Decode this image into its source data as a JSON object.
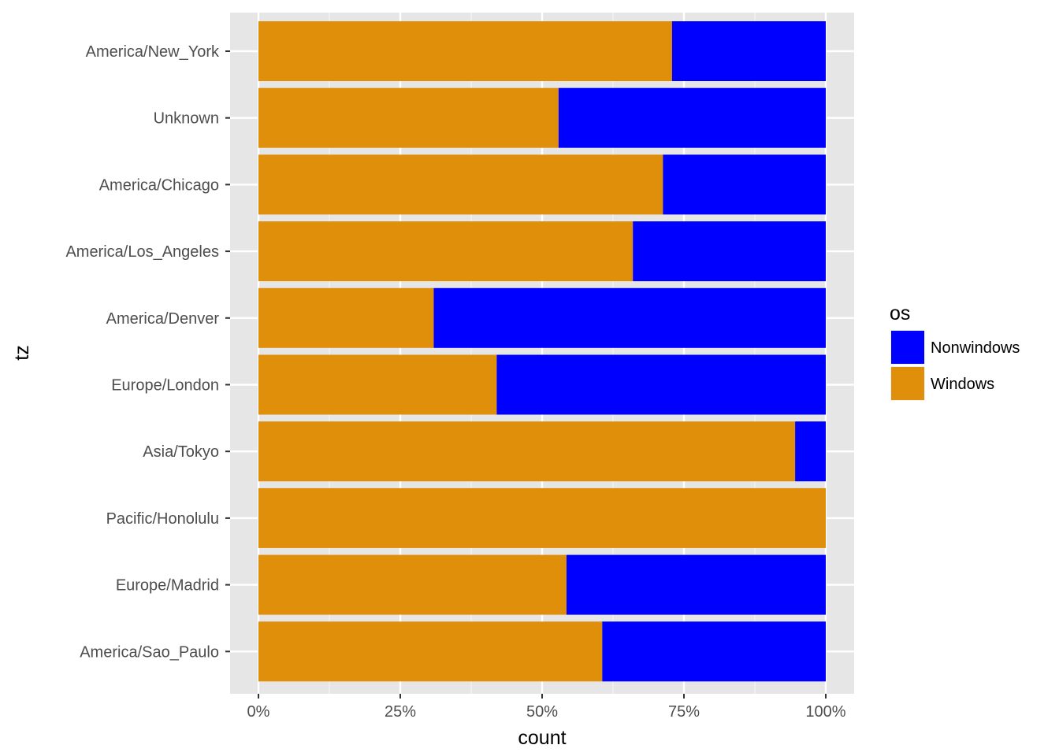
{
  "chart_data": {
    "type": "bar",
    "orientation": "horizontal",
    "stacked": "fill",
    "xlabel": "count",
    "ylabel": "tz",
    "xlim": [
      0,
      1
    ],
    "x_ticks": [
      0,
      0.25,
      0.5,
      0.75,
      1
    ],
    "x_tick_labels": [
      "0%",
      "25%",
      "50%",
      "75%",
      "100%"
    ],
    "categories": [
      "America/New_York",
      "Unknown",
      "America/Chicago",
      "America/Los_Angeles",
      "America/Denver",
      "Europe/London",
      "Asia/Tokyo",
      "Pacific/Honolulu",
      "Europe/Madrid",
      "America/Sao_Paulo"
    ],
    "series": [
      {
        "name": "Windows",
        "color": "#E08F0B",
        "values": [
          0.729,
          0.529,
          0.713,
          0.66,
          0.309,
          0.42,
          0.946,
          1.0,
          0.543,
          0.606
        ]
      },
      {
        "name": "Nonwindows",
        "color": "#0000FF",
        "values": [
          0.271,
          0.471,
          0.287,
          0.34,
          0.691,
          0.58,
          0.054,
          0.0,
          0.457,
          0.394
        ]
      }
    ],
    "legend": {
      "title": "os",
      "position": "right",
      "entries": [
        "Nonwindows",
        "Windows"
      ]
    },
    "grid": true,
    "panel_background": "#E6E6E6"
  }
}
